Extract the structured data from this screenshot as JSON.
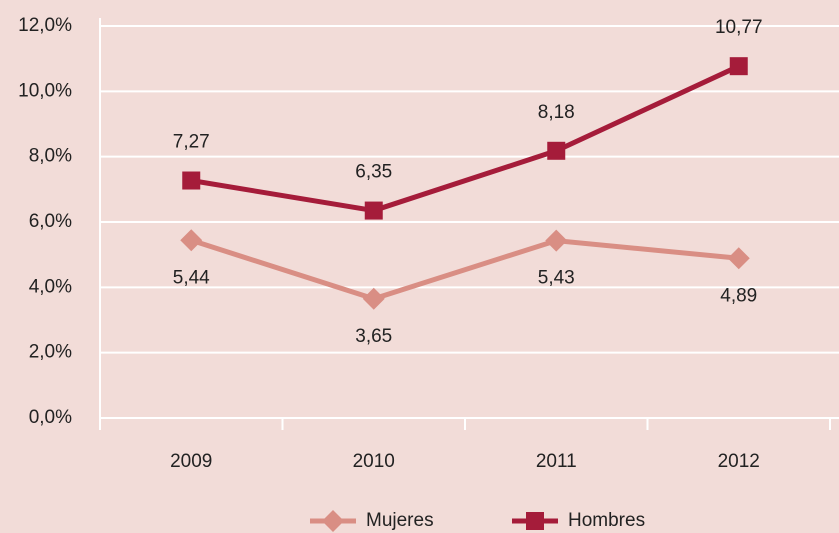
{
  "chart_data": {
    "type": "line",
    "categories": [
      "2009",
      "2010",
      "2011",
      "2012"
    ],
    "series": [
      {
        "name": "Mujeres",
        "color": "#d98e84",
        "marker": "diamond",
        "values": [
          5.44,
          3.65,
          5.43,
          4.89
        ],
        "value_labels": [
          "5,44",
          "3,65",
          "5,43",
          "4,89"
        ],
        "label_position": "below"
      },
      {
        "name": "Hombres",
        "color": "#a51c3a",
        "marker": "square",
        "values": [
          7.27,
          6.35,
          8.18,
          10.77
        ],
        "value_labels": [
          "7,27",
          "6,35",
          "8,18",
          "10,77"
        ],
        "label_position": "above"
      }
    ],
    "ylim": [
      0,
      12
    ],
    "yticks": [
      {
        "value": 0,
        "label": "0,0%"
      },
      {
        "value": 2,
        "label": "2,0%"
      },
      {
        "value": 4,
        "label": "4,0%"
      },
      {
        "value": 6,
        "label": "6,0%"
      },
      {
        "value": 8,
        "label": "8,0%"
      },
      {
        "value": 10,
        "label": "10,0%"
      },
      {
        "value": 12,
        "label": "12,0%"
      }
    ],
    "grid": true,
    "legend": "bottom"
  }
}
